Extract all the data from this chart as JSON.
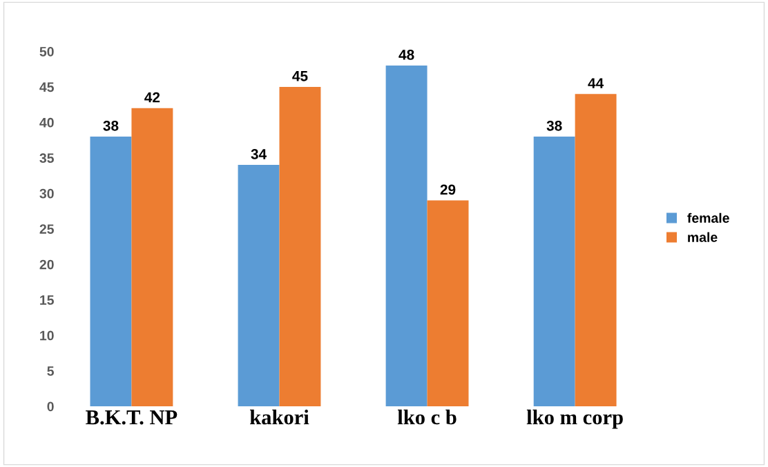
{
  "chart_data": {
    "type": "bar",
    "categories": [
      "B.K.T. NP",
      "kakori",
      "lko c b",
      "lko m corp"
    ],
    "series": [
      {
        "name": "female",
        "color": "#5b9bd5",
        "values": [
          38,
          34,
          48,
          38
        ]
      },
      {
        "name": "male",
        "color": "#ed7d31",
        "values": [
          42,
          45,
          29,
          44
        ]
      }
    ],
    "ylim": [
      0,
      50
    ],
    "yticks": [
      0,
      5,
      10,
      15,
      20,
      25,
      30,
      35,
      40,
      45,
      50
    ],
    "data_labels": true,
    "grid": false,
    "legend": "right"
  }
}
